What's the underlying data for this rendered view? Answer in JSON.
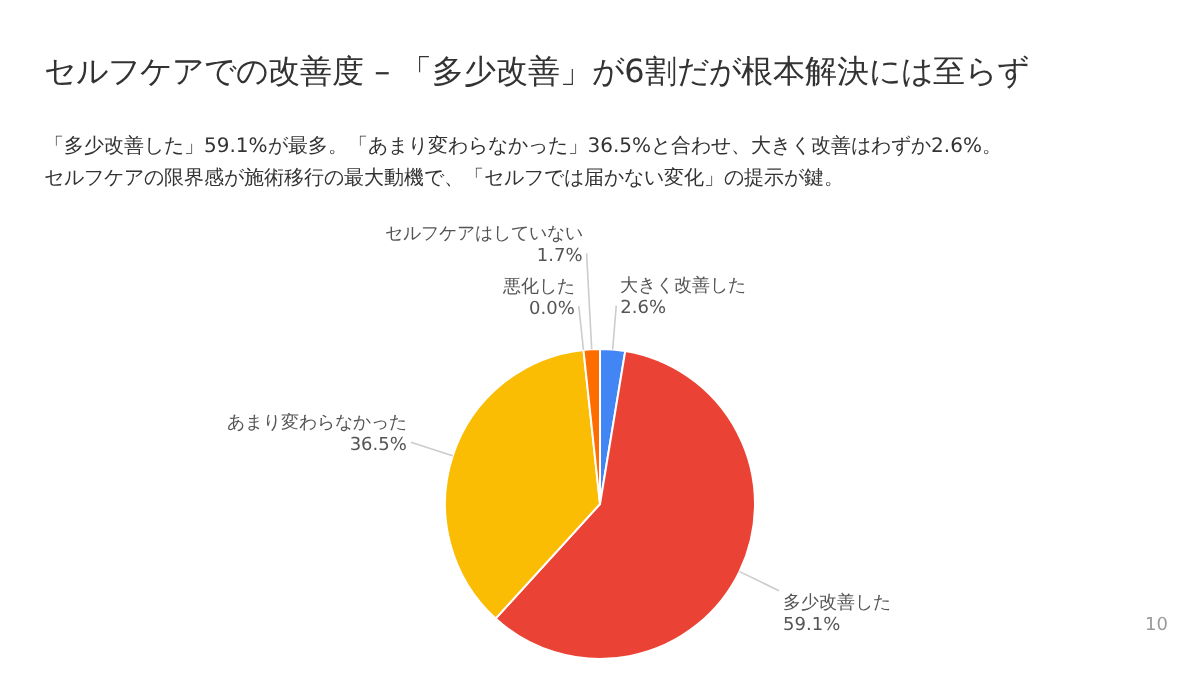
{
  "chart_data": {
    "type": "pie",
    "title": "セルフケアでの改善度 – 「多少改善」が6割だが根本解決には至らず",
    "subtitle": "「多少改善した」59.1%が最多。「あまり変わらなかった」36.5%と合わせ、大きく改善はわずか2.6%。",
    "categories": [
      "大きく改善した",
      "多少改善した",
      "あまり変わらなかった",
      "悪化した",
      "セルフケアはしていない"
    ],
    "values": [
      2.6,
      59.1,
      36.5,
      0.0,
      1.7
    ],
    "colors": [
      "#4285f4",
      "#ea4335",
      "#fbbc04",
      "#34a853",
      "#ff6d01"
    ],
    "value_labels": [
      "2.6%",
      "59.1%",
      "36.5%",
      "0.0%",
      "1.7%"
    ],
    "legend": false,
    "annotations": [
      "セルフケアの限界感が施術移行の最大動機で、「セルフでは届かない変化」の提示が鍵。",
      "10"
    ]
  }
}
